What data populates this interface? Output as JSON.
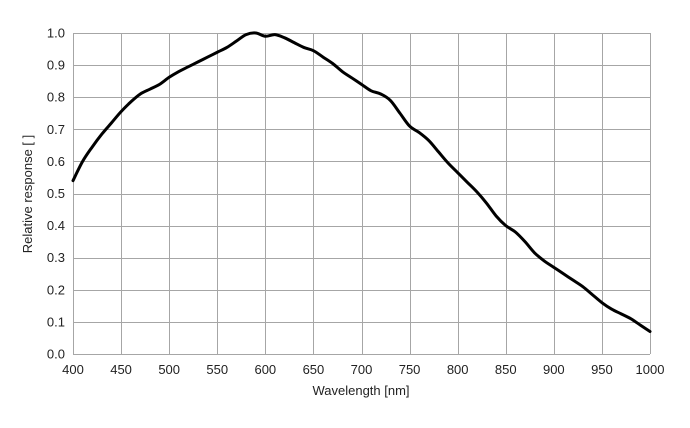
{
  "chart_data": {
    "type": "line",
    "title": "",
    "xlabel": "Wavelength [nm]",
    "ylabel": "Relative response [ ]",
    "xlim": [
      400,
      1000
    ],
    "ylim": [
      0,
      1.0
    ],
    "xticks": [
      400,
      450,
      500,
      550,
      600,
      650,
      700,
      750,
      800,
      850,
      900,
      950,
      1000
    ],
    "xtick_labels": [
      "400",
      "450",
      "500",
      "550",
      "600",
      "650",
      "700",
      "750",
      "800",
      "850",
      "900",
      "950",
      "1000"
    ],
    "yticks": [
      0,
      0.1,
      0.2,
      0.3,
      0.4,
      0.5,
      0.6,
      0.7,
      0.8,
      0.9,
      1.0
    ],
    "ytick_labels": [
      "0.0",
      "0.1",
      "0.2",
      "0.3",
      "0.4",
      "0.5",
      "0.6",
      "0.7",
      "0.8",
      "0.9",
      "1.0"
    ],
    "grid": true,
    "legend": "none",
    "line_color": "#000000",
    "grid_color": "#a6a6a6",
    "series": [
      {
        "x": [
          400,
          410,
          420,
          430,
          440,
          450,
          460,
          470,
          480,
          490,
          500,
          510,
          520,
          530,
          540,
          550,
          560,
          570,
          580,
          590,
          600,
          610,
          620,
          630,
          640,
          650,
          660,
          670,
          680,
          690,
          700,
          710,
          720,
          730,
          740,
          750,
          760,
          770,
          780,
          790,
          800,
          810,
          820,
          830,
          840,
          850,
          860,
          870,
          880,
          890,
          900,
          910,
          920,
          930,
          940,
          950,
          960,
          970,
          980,
          990,
          1000
        ],
        "y": [
          0.54,
          0.6,
          0.645,
          0.685,
          0.72,
          0.755,
          0.785,
          0.81,
          0.825,
          0.84,
          0.862,
          0.88,
          0.895,
          0.91,
          0.925,
          0.94,
          0.955,
          0.975,
          0.995,
          1.0,
          0.99,
          0.995,
          0.985,
          0.97,
          0.955,
          0.945,
          0.925,
          0.905,
          0.88,
          0.86,
          0.84,
          0.82,
          0.81,
          0.79,
          0.75,
          0.71,
          0.69,
          0.665,
          0.63,
          0.595,
          0.565,
          0.535,
          0.505,
          0.47,
          0.43,
          0.4,
          0.38,
          0.35,
          0.315,
          0.29,
          0.27,
          0.25,
          0.23,
          0.21,
          0.185,
          0.16,
          0.14,
          0.125,
          0.11,
          0.09,
          0.07
        ]
      }
    ]
  }
}
